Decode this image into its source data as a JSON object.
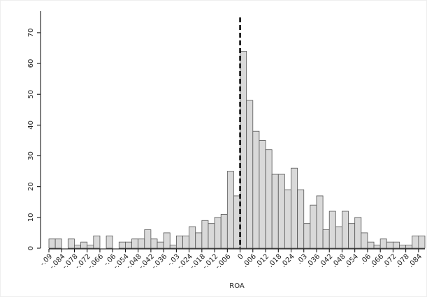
{
  "chart_data": {
    "type": "histogram",
    "xlabel": "ROA",
    "bins": [
      -0.09,
      -0.087,
      -0.084,
      -0.081,
      -0.078,
      -0.075,
      -0.072,
      -0.069,
      -0.066,
      -0.063,
      -0.06,
      -0.057,
      -0.054,
      -0.051,
      -0.048,
      -0.045,
      -0.042,
      -0.039,
      -0.036,
      -0.033,
      -0.03,
      -0.027,
      -0.024,
      -0.021,
      -0.018,
      -0.015,
      -0.012,
      -0.009,
      -0.006,
      -0.003,
      0,
      0.003,
      0.006,
      0.009,
      0.012,
      0.015,
      0.018,
      0.021,
      0.024,
      0.027,
      0.03,
      0.033,
      0.036,
      0.039,
      0.042,
      0.045,
      0.048,
      0.051,
      0.054,
      0.057,
      0.06,
      0.063,
      0.066,
      0.069,
      0.072,
      0.075,
      0.078,
      0.081,
      0.084,
      0.087
    ],
    "counts": [
      3,
      3,
      0,
      3,
      1,
      2,
      1,
      4,
      0,
      4,
      0,
      2,
      2,
      3,
      3,
      6,
      3,
      2,
      5,
      1,
      4,
      4,
      7,
      5,
      9,
      8,
      10,
      11,
      25,
      17,
      64,
      48,
      38,
      35,
      32,
      24,
      24,
      19,
      26,
      19,
      8,
      14,
      17,
      6,
      12,
      7,
      12,
      8,
      10,
      5,
      2,
      1,
      3,
      2,
      2,
      1,
      1,
      4,
      4
    ],
    "color": "#d9d9d9",
    "xlim": [
      -0.09,
      0.087
    ],
    "ylim": [
      0,
      77
    ],
    "xticks": [
      {
        "value": -0.09,
        "label": "-.09"
      },
      {
        "value": -0.084,
        "label": "-.084"
      },
      {
        "value": -0.078,
        "label": "-.078"
      },
      {
        "value": -0.072,
        "label": "-.072"
      },
      {
        "value": -0.066,
        "label": "-.066"
      },
      {
        "value": -0.06,
        "label": "-.06"
      },
      {
        "value": -0.054,
        "label": "-.054"
      },
      {
        "value": -0.048,
        "label": "-.048"
      },
      {
        "value": -0.042,
        "label": "-.042"
      },
      {
        "value": -0.036,
        "label": "-.036"
      },
      {
        "value": -0.03,
        "label": "-.03"
      },
      {
        "value": -0.024,
        "label": "-.024"
      },
      {
        "value": -0.018,
        "label": "-.018"
      },
      {
        "value": -0.012,
        "label": "-.012"
      },
      {
        "value": -0.006,
        "label": "-.006"
      },
      0,
      {
        "value": 0.006,
        "label": ".006"
      },
      {
        "value": 0.012,
        "label": ".012"
      },
      {
        "value": 0.018,
        "label": ".018"
      },
      {
        "value": 0.024,
        "label": ".024"
      },
      {
        "value": 0.03,
        "label": ".03"
      },
      {
        "value": 0.036,
        "label": ".036"
      },
      {
        "value": 0.042,
        "label": ".042"
      },
      {
        "value": 0.048,
        "label": ".048"
      },
      {
        "value": 0.054,
        "label": ".054"
      },
      {
        "value": 0.06,
        "label": ".06"
      },
      {
        "value": 0.066,
        "label": ".066"
      },
      {
        "value": 0.072,
        "label": ".072"
      },
      {
        "value": 0.078,
        "label": ".078"
      },
      {
        "value": 0.084,
        "label": ".084"
      }
    ],
    "yticks": [
      0,
      10,
      20,
      30,
      40,
      50,
      60,
      70
    ],
    "vline": 0
  }
}
